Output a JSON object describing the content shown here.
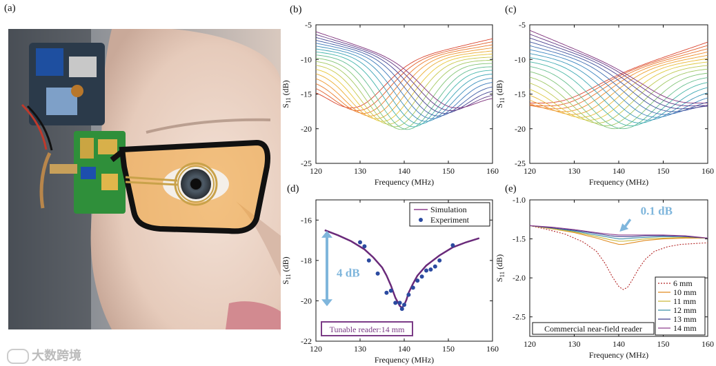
{
  "figure": {
    "panel_a_label": "(a)",
    "watermark": "大数跨境"
  },
  "chart_data": [
    {
      "id": "b",
      "label": "(b)",
      "type": "line",
      "title": "",
      "xlabel": "Frequency (MHz)",
      "ylabel": "S11 (dB)",
      "xlim": [
        120,
        160
      ],
      "ylim": [
        -25,
        -5
      ],
      "xticks": [
        120,
        130,
        140,
        150,
        160
      ],
      "yticks": [
        -5,
        -10,
        -15,
        -20,
        -25
      ],
      "description_series": "18 S11 curves with resonance dips sweeping from ~128 MHz to ~152 MHz; min near -20 dB at 140 MHz",
      "sweep": {
        "count": 18,
        "f0_start": 128,
        "f0_end": 152,
        "depth_center": -20.3,
        "depth_edge": -17.0,
        "left_level_start": -13.0,
        "left_level_end": -6.0,
        "right_level_start": -7.0,
        "right_level_end": -14.5,
        "width": 9
      }
    },
    {
      "id": "c",
      "label": "(c)",
      "type": "line",
      "title": "",
      "xlabel": "Frequency (MHz)",
      "ylabel": "S11 (dB)",
      "xlim": [
        120,
        160
      ],
      "ylim": [
        -25,
        -5
      ],
      "xticks": [
        120,
        130,
        140,
        150,
        160
      ],
      "yticks": [
        -5,
        -10,
        -15,
        -20,
        -25
      ],
      "sweep": {
        "count": 20,
        "f0_start": 122,
        "f0_end": 158,
        "depth_center": -20.2,
        "depth_edge": -16.3,
        "left_level_start": -16.3,
        "left_level_end": -5.8,
        "right_level_start": -7.5,
        "right_level_end": -16.5,
        "width": 11
      }
    },
    {
      "id": "d",
      "label": "(d)",
      "type": "line+scatter",
      "xlabel": "Frequency (MHz)",
      "ylabel": "S11 (dB)",
      "xlim": [
        120,
        160
      ],
      "ylim": [
        -22,
        -15
      ],
      "xticks": [
        120,
        130,
        140,
        150,
        160
      ],
      "yticks": [
        -16,
        -18,
        -20,
        -22
      ],
      "legend": [
        "Simulation",
        "Experiment"
      ],
      "annotation": "4 dB",
      "box_label": "Tunable reader:14 mm",
      "simulation": {
        "x": [
          122,
          125,
          128,
          131,
          133,
          135,
          136,
          137,
          138,
          139,
          139.5,
          140,
          140.5,
          141,
          142,
          143,
          145,
          148,
          151,
          154,
          157
        ],
        "y": [
          -16.5,
          -16.75,
          -17.05,
          -17.45,
          -17.85,
          -18.35,
          -18.75,
          -19.25,
          -19.85,
          -20.25,
          -20.35,
          -20.2,
          -19.95,
          -19.6,
          -19.15,
          -18.75,
          -18.25,
          -17.75,
          -17.35,
          -17.1,
          -16.9
        ]
      },
      "experiment": {
        "x": [
          130,
          131,
          132,
          134,
          136,
          137,
          138,
          139,
          139.5,
          140,
          141,
          142,
          143,
          144,
          145,
          146,
          147,
          148,
          151
        ],
        "y": [
          -17.1,
          -17.3,
          -18.0,
          -18.65,
          -19.6,
          -19.5,
          -20.1,
          -20.1,
          -20.4,
          -20.2,
          -19.7,
          -19.35,
          -19.0,
          -18.8,
          -18.5,
          -18.45,
          -18.3,
          -18.0,
          -17.25
        ]
      }
    },
    {
      "id": "e",
      "label": "(e)",
      "type": "line",
      "xlabel": "Frequency (MHz)",
      "ylabel": "S11 (dB)",
      "xlim": [
        120,
        160
      ],
      "ylim": [
        -2.75,
        -1.0
      ],
      "xticks": [
        120,
        130,
        140,
        150,
        160
      ],
      "yticks": [
        -1.0,
        -1.5,
        -2.0,
        -2.5
      ],
      "annotation": "0.1 dB",
      "box_label": "Commercial near-field reader",
      "series": [
        {
          "name": "6 mm",
          "color": "#b22222",
          "dashed": true,
          "x": [
            120,
            124,
            128,
            132,
            135,
            137,
            138.5,
            140,
            141,
            142,
            143,
            144.5,
            146,
            148,
            151,
            154,
            157,
            160
          ],
          "y": [
            -1.33,
            -1.38,
            -1.44,
            -1.54,
            -1.66,
            -1.82,
            -1.98,
            -2.11,
            -2.15,
            -2.12,
            -2.03,
            -1.88,
            -1.76,
            -1.66,
            -1.6,
            -1.57,
            -1.56,
            -1.55
          ]
        },
        {
          "name": "10 mm",
          "color": "#e08a1e",
          "x": [
            120,
            125,
            130,
            135,
            138,
            140,
            141,
            143,
            146,
            150,
            155,
            160
          ],
          "y": [
            -1.33,
            -1.37,
            -1.42,
            -1.49,
            -1.54,
            -1.57,
            -1.57,
            -1.55,
            -1.52,
            -1.5,
            -1.49,
            -1.49
          ]
        },
        {
          "name": "11 mm",
          "color": "#c9b63a",
          "x": [
            120,
            125,
            130,
            135,
            138,
            140,
            141,
            143,
            146,
            150,
            155,
            160
          ],
          "y": [
            -1.33,
            -1.37,
            -1.41,
            -1.47,
            -1.51,
            -1.53,
            -1.53,
            -1.52,
            -1.5,
            -1.49,
            -1.48,
            -1.49
          ]
        },
        {
          "name": "12 mm",
          "color": "#3b8fa8",
          "x": [
            120,
            125,
            130,
            135,
            138,
            140,
            141,
            143,
            146,
            150,
            155,
            160
          ],
          "y": [
            -1.33,
            -1.36,
            -1.4,
            -1.45,
            -1.48,
            -1.5,
            -1.5,
            -1.49,
            -1.48,
            -1.47,
            -1.47,
            -1.49
          ]
        },
        {
          "name": "13 mm",
          "color": "#3a3a8c",
          "x": [
            120,
            125,
            130,
            135,
            138,
            140,
            141,
            143,
            146,
            150,
            155,
            160
          ],
          "y": [
            -1.33,
            -1.36,
            -1.39,
            -1.43,
            -1.46,
            -1.47,
            -1.47,
            -1.47,
            -1.46,
            -1.46,
            -1.47,
            -1.49
          ]
        },
        {
          "name": "14 mm",
          "color": "#8e3f8e",
          "x": [
            120,
            125,
            130,
            135,
            138,
            140,
            141,
            143,
            146,
            150,
            155,
            160
          ],
          "y": [
            -1.33,
            -1.35,
            -1.38,
            -1.42,
            -1.44,
            -1.45,
            -1.45,
            -1.45,
            -1.45,
            -1.45,
            -1.46,
            -1.49
          ]
        }
      ]
    }
  ]
}
